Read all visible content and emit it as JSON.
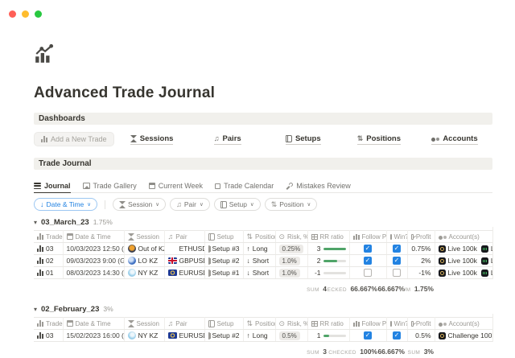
{
  "page": {
    "title": "Advanced Trade Journal"
  },
  "dashboards": {
    "title": "Dashboards",
    "add_button_label": "Add a New Trade",
    "links": [
      {
        "label": "Sessions"
      },
      {
        "label": "Pairs"
      },
      {
        "label": "Setups"
      },
      {
        "label": "Positions"
      },
      {
        "label": "Accounts"
      }
    ]
  },
  "trade_journal": {
    "title": "Trade Journal",
    "tabs": [
      {
        "label": "Journal"
      },
      {
        "label": "Trade Gallery"
      },
      {
        "label": "Current Week"
      },
      {
        "label": "Trade Calendar"
      },
      {
        "label": "Mistakes Review"
      }
    ],
    "filters": {
      "sort_chip": "Date & Time",
      "chips": [
        {
          "label": "Session"
        },
        {
          "label": "Pair"
        },
        {
          "label": "Setup"
        },
        {
          "label": "Position"
        }
      ],
      "sort_arrow": "↓",
      "chevron": "∨"
    },
    "columns": {
      "trade": "Trade",
      "datetime": "Date & Time",
      "session": "Session",
      "pair": "Pair",
      "setup": "Setup",
      "position": "Position",
      "risk": "Risk, %",
      "rr": "RR ratio",
      "follow_plan": "Follow Plan",
      "win": "Win?",
      "profit": "Profit",
      "accounts": "Account(s)"
    },
    "icons": {
      "music_note": "♫",
      "arrows_up_down": "⇅",
      "target": "⊙",
      "group_toggle": "▾"
    },
    "groups": [
      {
        "name": "03_March_23",
        "pct": "1.75%",
        "rows": [
          {
            "trade": "03",
            "datetime": "10/03/2023 12:50 (GM",
            "session": "Out of KZ",
            "session_class": "sess-out",
            "pair": "ETHUSD",
            "flag_class": "flag-none",
            "setup": "Setup #3",
            "arrow": "↑",
            "position": "Long",
            "risk": "0.25%",
            "rr": "3",
            "rr_pct": 100,
            "follow_plan": "checked",
            "win": "checked",
            "profit": "0.75%",
            "acc1": "Live 100k",
            "acc1_class": "acct-target",
            "acc2": "Live",
            "acc2_class": "acct-chart"
          },
          {
            "trade": "02",
            "datetime": "09/03/2023 9:00 (GMT",
            "session": "LO KZ",
            "session_class": "sess-lo",
            "pair": "GBPUSD",
            "flag_class": "flag-gb",
            "setup": "Setup #2",
            "arrow": "↓",
            "position": "Short",
            "risk": "1.0%",
            "rr": "2",
            "rr_pct": 62,
            "follow_plan": "checked",
            "win": "checked",
            "profit": "2%",
            "acc1": "Live 100k",
            "acc1_class": "acct-target",
            "acc2": "Live",
            "acc2_class": "acct-chart"
          },
          {
            "trade": "01",
            "datetime": "08/03/2023 14:30 (GM",
            "session": "NY KZ",
            "session_class": "sess-ny",
            "pair": "EURUSD",
            "flag_class": "flag-eu",
            "setup": "Setup #1",
            "arrow": "↓",
            "position": "Short",
            "risk": "1.0%",
            "rr": "-1",
            "rr_pct": 0,
            "follow_plan": "unchecked",
            "win": "unchecked",
            "profit": "-1%",
            "acc1": "Live 100k",
            "acc1_class": "acct-target",
            "acc2": "Live",
            "acc2_class": "acct-chart"
          }
        ],
        "sum": {
          "rr_label": "SUM",
          "rr_value": "4",
          "fp_label": "ECKED",
          "fp_value": "66.667%",
          "win_value": "66.667%",
          "profit_label": "IUM",
          "profit_value": "1.75%"
        }
      },
      {
        "name": "02_February_23",
        "pct": "3%",
        "rows": [
          {
            "trade": "03",
            "datetime": "15/02/2023 16:00 (GM",
            "session": "NY KZ",
            "session_class": "sess-ny",
            "pair": "EURUSD",
            "flag_class": "flag-eu",
            "setup": "Setup #2",
            "arrow": "↑",
            "position": "Long",
            "risk": "0.5%",
            "rr": "1",
            "rr_pct": 25,
            "follow_plan": "checked",
            "win": "checked",
            "profit": "0.5%",
            "acc1": "Challenge 100k",
            "acc1_class": "acct-target"
          }
        ],
        "sum": {
          "rr_label": "SUM",
          "rr_value": "3",
          "fp_label": "CHECKED",
          "fp_value": "100%",
          "win_value": "66.667%",
          "profit_label": "SUM",
          "profit_value": "3%"
        }
      }
    ]
  }
}
